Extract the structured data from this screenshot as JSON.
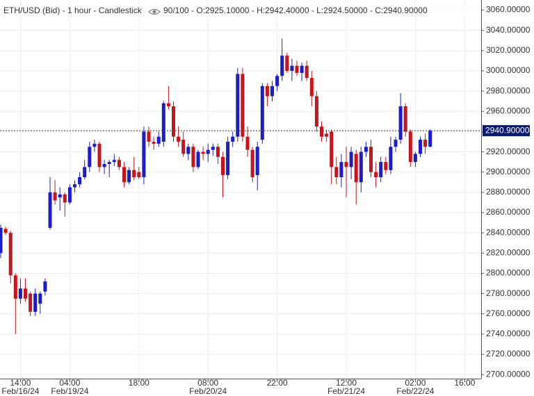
{
  "chart_data": {
    "type": "candlestick",
    "title": "ETH/USD (Bid) - 1 hour - Candlestick",
    "info": "90/100 - O:2925.10000 - H:2942.40000 - L:2924.50000 - C:2940.90000",
    "up_color": "#1c1cc8",
    "down_color": "#c8141c",
    "open": [
      2820,
      2844,
      2840,
      2798,
      2775,
      2785,
      2780,
      2762,
      2770,
      2782,
      2845,
      2880,
      2875,
      2878,
      2870,
      2885,
      2888,
      2895,
      2905,
      2925,
      2928,
      2905,
      2908,
      2910,
      2912,
      2905,
      2890,
      2902,
      2900,
      2895,
      2940,
      2930,
      2928,
      2930,
      2968,
      2965,
      2935,
      2932,
      2918,
      2925,
      2905,
      2920,
      2918,
      2922,
      2925,
      2915,
      2897,
      2930,
      2935,
      2997,
      2935,
      2922,
      2897,
      2932,
      2985,
      2975,
      2985,
      2995,
      3015,
      3000,
      3005,
      2998,
      3005,
      2993,
      2975,
      2945,
      2938,
      2940,
      2905,
      2895,
      2910,
      2905,
      2918,
      2890,
      2920,
      2925,
      2900,
      2895,
      2910,
      2902,
      2925,
      2932,
      2965,
      2940,
      2910,
      2918,
      2932,
      2925.1
    ],
    "high": [
      2848,
      2846,
      2842,
      2800,
      2795,
      2795,
      2782,
      2785,
      2782,
      2795,
      2895,
      2892,
      2885,
      2880,
      2888,
      2892,
      2900,
      2912,
      2930,
      2932,
      2930,
      2912,
      2912,
      2918,
      2915,
      2910,
      2905,
      2915,
      2905,
      2945,
      2945,
      2935,
      2940,
      2970,
      2985,
      2970,
      2945,
      2940,
      2928,
      2928,
      2922,
      2925,
      2928,
      2928,
      2928,
      2920,
      2935,
      2940,
      3003,
      3003,
      2945,
      2925,
      2930,
      2988,
      2988,
      2990,
      2997,
      3032,
      3018,
      3012,
      3010,
      3008,
      3010,
      3000,
      2980,
      2950,
      2942,
      2942,
      2915,
      2918,
      2925,
      2925,
      2922,
      2925,
      2930,
      2932,
      2910,
      2915,
      2915,
      2935,
      2935,
      2978,
      2968,
      2942,
      2920,
      2935,
      2938,
      2942.4
    ],
    "low": [
      2815,
      2838,
      2790,
      2740,
      2770,
      2772,
      2758,
      2758,
      2760,
      2778,
      2843,
      2868,
      2862,
      2856,
      2868,
      2880,
      2885,
      2893,
      2900,
      2920,
      2900,
      2898,
      2895,
      2906,
      2902,
      2885,
      2888,
      2892,
      2893,
      2888,
      2925,
      2922,
      2925,
      2925,
      2962,
      2930,
      2925,
      2915,
      2912,
      2900,
      2903,
      2912,
      2910,
      2916,
      2908,
      2875,
      2893,
      2925,
      2930,
      2930,
      2915,
      2890,
      2882,
      2928,
      2965,
      2970,
      2980,
      2990,
      2998,
      2990,
      2995,
      2990,
      2990,
      2965,
      2940,
      2930,
      2930,
      2888,
      2888,
      2885,
      2875,
      2893,
      2868,
      2880,
      2915,
      2895,
      2885,
      2890,
      2898,
      2898,
      2920,
      2928,
      2935,
      2905,
      2905,
      2915,
      2918,
      2924.5
    ],
    "close": [
      2845,
      2840,
      2798,
      2775,
      2785,
      2775,
      2762,
      2780,
      2780,
      2792,
      2880,
      2872,
      2878,
      2870,
      2885,
      2888,
      2895,
      2905,
      2925,
      2928,
      2905,
      2908,
      2910,
      2912,
      2905,
      2890,
      2902,
      2895,
      2895,
      2940,
      2930,
      2928,
      2935,
      2968,
      2965,
      2935,
      2930,
      2918,
      2925,
      2905,
      2920,
      2918,
      2922,
      2925,
      2915,
      2897,
      2930,
      2935,
      2997,
      2935,
      2922,
      2895,
      2925,
      2985,
      2975,
      2985,
      2995,
      3015,
      3000,
      3005,
      2998,
      3005,
      2993,
      2975,
      2945,
      2935,
      2935,
      2905,
      2895,
      2910,
      2905,
      2920,
      2890,
      2920,
      2925,
      2900,
      2895,
      2910,
      2902,
      2925,
      2932,
      2965,
      2940,
      2910,
      2918,
      2932,
      2925,
      2940.9
    ],
    "last_price": {
      "value": 2940.9,
      "label": "2940.90000"
    },
    "ylim": [
      2696,
      3070
    ],
    "yticks": [
      {
        "value": 2700,
        "label": "2700.00000"
      },
      {
        "value": 2720,
        "label": "2720.00000"
      },
      {
        "value": 2740,
        "label": "2740.00000"
      },
      {
        "value": 2760,
        "label": "2760.00000"
      },
      {
        "value": 2780,
        "label": "2780.00000"
      },
      {
        "value": 2800,
        "label": "2800.00000"
      },
      {
        "value": 2820,
        "label": "2820.00000"
      },
      {
        "value": 2840,
        "label": "2840.00000"
      },
      {
        "value": 2860,
        "label": "2860.00000"
      },
      {
        "value": 2880,
        "label": "2880.00000"
      },
      {
        "value": 2900,
        "label": "2900.00000"
      },
      {
        "value": 2920,
        "label": "2920.00000"
      },
      {
        "value": 2940,
        "label": "2940.00000"
      },
      {
        "value": 2960,
        "label": "2960.00000"
      },
      {
        "value": 2980,
        "label": "2980.00000"
      },
      {
        "value": 3000,
        "label": "3000.00000"
      },
      {
        "value": 3020,
        "label": "3020.00000"
      },
      {
        "value": 3040,
        "label": "3040.00000"
      },
      {
        "value": 3060,
        "label": "3060.00000"
      }
    ],
    "xticks": [
      {
        "value": 4,
        "label": "14:00",
        "date": "Feb/16/24"
      },
      {
        "value": 14,
        "label": "04:00",
        "date": "Feb/19/24"
      },
      {
        "value": 28,
        "label": "18:00"
      },
      {
        "value": 42,
        "label": "08:00",
        "date": "Feb/20/24"
      },
      {
        "value": 56,
        "label": "22:00"
      },
      {
        "value": 70,
        "label": "12:00",
        "date": "Feb/21/24"
      },
      {
        "value": 84,
        "label": "02:00",
        "date": "Feb/22/24"
      },
      {
        "value": 94,
        "label": "16:00"
      }
    ],
    "grid": true
  }
}
